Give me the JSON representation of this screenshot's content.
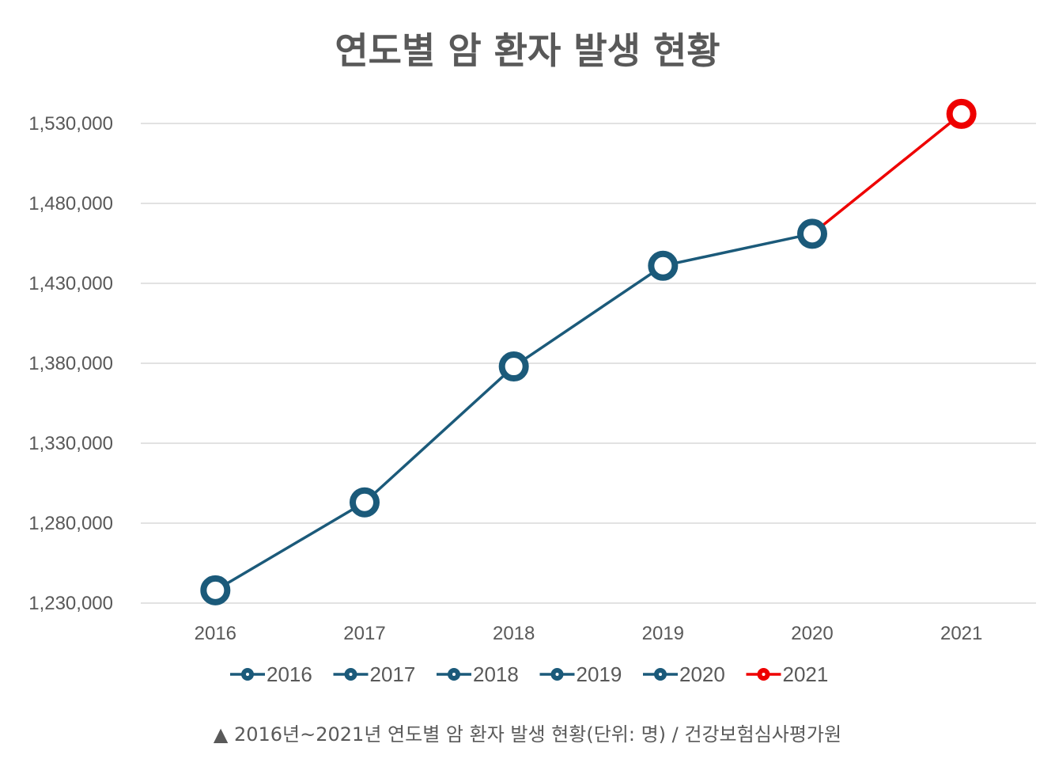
{
  "chart_data": {
    "type": "line",
    "title": "연도별 암 환자 발생 현황",
    "categories": [
      "2016",
      "2017",
      "2018",
      "2019",
      "2020",
      "2021"
    ],
    "values": [
      1238000,
      1293000,
      1378000,
      1441000,
      1461000,
      1536000
    ],
    "point_colors": [
      "#1b5a7a",
      "#1b5a7a",
      "#1b5a7a",
      "#1b5a7a",
      "#1b5a7a",
      "#ee0000"
    ],
    "y_ticks": [
      "1,230,000",
      "1,280,000",
      "1,330,000",
      "1,380,000",
      "1,430,000",
      "1,480,000",
      "1,530,000"
    ],
    "ylim": [
      1230000,
      1530000
    ],
    "grid": true,
    "legend": {
      "placement": "bottom",
      "entries": [
        {
          "label": "2016",
          "color": "#1b5a7a"
        },
        {
          "label": "2017",
          "color": "#1b5a7a"
        },
        {
          "label": "2018",
          "color": "#1b5a7a"
        },
        {
          "label": "2019",
          "color": "#1b5a7a"
        },
        {
          "label": "2020",
          "color": "#1b5a7a"
        },
        {
          "label": "2021",
          "color": "#ee0000"
        }
      ]
    },
    "caption": "▲ 2016년~2021년 연도별 암 환자 발생 현황(단위: 명) / 건강보험심사평가원"
  }
}
